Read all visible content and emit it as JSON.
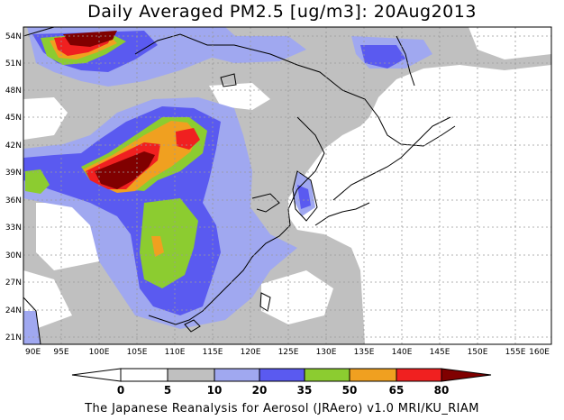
{
  "title": "Daily Averaged PM2.5 [ug/m3]: 20Aug2013",
  "credit": "The Japanese Reanalysis for Aerosol (JRAero) v1.0 MRI/KU_RIAM",
  "axes": {
    "lat_labels": [
      "54N",
      "51N",
      "48N",
      "45N",
      "42N",
      "39N",
      "36N",
      "33N",
      "30N",
      "27N",
      "24N",
      "21N"
    ],
    "lon_labels": [
      "90E",
      "95E",
      "100E",
      "105E",
      "110E",
      "115E",
      "120E",
      "125E",
      "130E",
      "135E",
      "140E",
      "145E",
      "150E",
      "155E",
      "160E"
    ],
    "lat_range": [
      20,
      55
    ],
    "lon_range": [
      90,
      160
    ]
  },
  "legend": {
    "thresholds": [
      "0",
      "5",
      "10",
      "20",
      "35",
      "50",
      "65",
      "80"
    ],
    "colors": [
      "#ffffff",
      "#c0c0c0",
      "#a0a8f0",
      "#5a5af0",
      "#8ccc30",
      "#f0a020",
      "#f02020",
      "#800000"
    ]
  },
  "colors": {
    "level_5": "#c0c0c0",
    "level_10": "#a0a8f0",
    "level_20": "#5a5af0",
    "level_35": "#8ccc30",
    "level_50": "#f0a020",
    "level_65": "#f02020",
    "level_80": "#800000",
    "coastline": "#000000",
    "grid": "#999999"
  }
}
